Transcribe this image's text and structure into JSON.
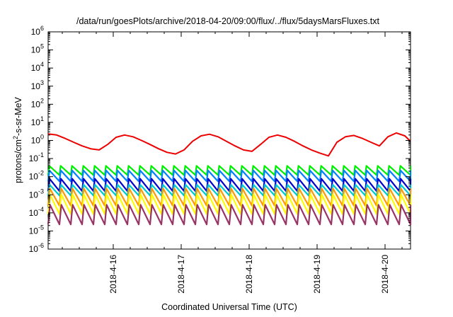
{
  "chart_data": {
    "type": "line",
    "title": "/data/run/goesPlots/archive/2018-04-20/09:00/flux/../flux/5daysMarsFluxes.txt",
    "xlabel": "Coordinated Universal Time (UTC)",
    "ylabel_main": "protons/cm",
    "ylabel_sup": "2",
    "ylabel_rest": "-s-sr-MeV",
    "yscale": "log",
    "ylim": [
      1e-06,
      1000000.0
    ],
    "xlim": [
      "2018-04-15T01:00",
      "2018-04-20T09:00"
    ],
    "grid": false,
    "legend": "none",
    "y_ticks": [
      {
        "base": "10",
        "exp": "-6"
      },
      {
        "base": "10",
        "exp": "-5"
      },
      {
        "base": "10",
        "exp": "-4"
      },
      {
        "base": "10",
        "exp": "-3"
      },
      {
        "base": "10",
        "exp": "-2"
      },
      {
        "base": "10",
        "exp": "-1"
      },
      {
        "base": "10",
        "exp": "0"
      },
      {
        "base": "10",
        "exp": "1"
      },
      {
        "base": "10",
        "exp": "2"
      },
      {
        "base": "10",
        "exp": "3"
      },
      {
        "base": "10",
        "exp": "4"
      },
      {
        "base": "10",
        "exp": "5"
      },
      {
        "base": "10",
        "exp": "6"
      }
    ],
    "x_ticks": [
      "2018-4-16",
      "2018-4-17",
      "2018-4-18",
      "2018-4-19",
      "2018-4-20"
    ],
    "series": [
      {
        "color": "#ee0000",
        "x": [
          "2018-04-15T01:00",
          "2018-04-15T04:00",
          "2018-04-15T07:00",
          "2018-04-15T10:00",
          "2018-04-15T13:00",
          "2018-04-15T16:00",
          "2018-04-15T19:00",
          "2018-04-15T22:00",
          "2018-04-16T01:00",
          "2018-04-16T04:00",
          "2018-04-16T07:00",
          "2018-04-16T10:00",
          "2018-04-16T13:00",
          "2018-04-16T16:00",
          "2018-04-16T19:00",
          "2018-04-16T22:00",
          "2018-04-17T01:00",
          "2018-04-17T04:00",
          "2018-04-17T07:00",
          "2018-04-17T10:00",
          "2018-04-17T13:00",
          "2018-04-17T16:00",
          "2018-04-17T19:00",
          "2018-04-17T22:00",
          "2018-04-18T01:00",
          "2018-04-18T04:00",
          "2018-04-18T07:00",
          "2018-04-18T10:00",
          "2018-04-18T13:00",
          "2018-04-18T16:00",
          "2018-04-18T19:00",
          "2018-04-18T22:00",
          "2018-04-19T01:00",
          "2018-04-19T04:00",
          "2018-04-19T07:00",
          "2018-04-19T10:00",
          "2018-04-19T13:00",
          "2018-04-19T16:00",
          "2018-04-19T19:00",
          "2018-04-19T22:00",
          "2018-04-20T01:00",
          "2018-04-20T04:00",
          "2018-04-20T07:00",
          "2018-04-20T09:00"
        ],
        "y": [
          2.3,
          2.0,
          1.3,
          0.8,
          0.5,
          0.35,
          0.3,
          0.6,
          1.5,
          2.0,
          1.6,
          1.0,
          0.6,
          0.35,
          0.22,
          0.18,
          0.3,
          0.9,
          1.8,
          2.2,
          1.6,
          0.9,
          0.5,
          0.3,
          0.25,
          0.6,
          1.5,
          2.0,
          1.5,
          0.9,
          0.5,
          0.3,
          0.2,
          0.14,
          0.8,
          1.6,
          1.9,
          1.3,
          0.8,
          0.5,
          1.6,
          2.6,
          1.8,
          0.9
        ]
      },
      {
        "color": "#00ee00",
        "level": 0.022,
        "amp": 1.8
      },
      {
        "color": "#0080ff",
        "level": 0.011,
        "amp": 2.0
      },
      {
        "color": "#0000cc",
        "level": 0.0035,
        "amp": 2.2
      },
      {
        "color": "#00cccc",
        "level": 0.0018,
        "amp": 2.0
      },
      {
        "color": "#ff9900",
        "level": 0.00075,
        "amp": 3.0
      },
      {
        "color": "#ffff00",
        "level": 0.0003,
        "amp": 3.5
      },
      {
        "color": "#993366",
        "level": 8e-05,
        "amp": 3.5
      }
    ]
  }
}
